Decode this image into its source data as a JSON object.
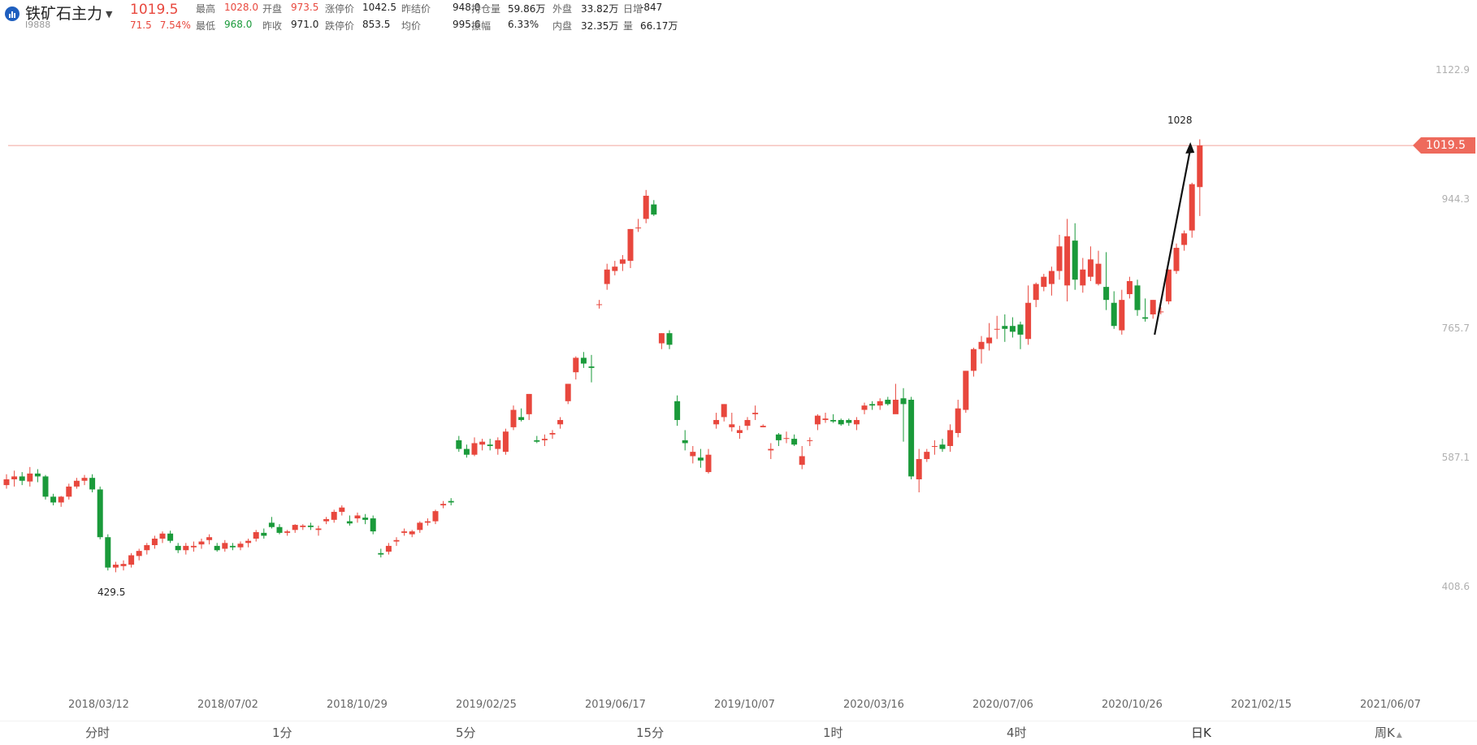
{
  "instrument": {
    "name": "铁矿石主力",
    "dropdown_glyph": "▼",
    "code": "I9888",
    "last_price": "1019.5",
    "change": "71.5",
    "change_pct": "7.54%"
  },
  "quote_row1": [
    {
      "label": "最高",
      "value": "1028.0",
      "color": "red"
    },
    {
      "label": "开盘",
      "value": "973.5",
      "color": "red"
    },
    {
      "label": "涨停价",
      "value": "1042.5",
      "color": "dark"
    },
    {
      "label": "昨结价",
      "value": "948.0",
      "color": "dark"
    },
    {
      "label": "持仓量",
      "value": "59.86万",
      "color": "dark"
    },
    {
      "label": "外盘",
      "value": "33.82万",
      "color": "dark"
    },
    {
      "label": "日增",
      "value": "-847",
      "color": "dark"
    }
  ],
  "quote_row2": [
    {
      "label": "最低",
      "value": "968.0",
      "color": "green"
    },
    {
      "label": "昨收",
      "value": "971.0",
      "color": "dark"
    },
    {
      "label": "跌停价",
      "value": "853.5",
      "color": "dark"
    },
    {
      "label": "均价",
      "value": "995.6",
      "color": "dark"
    },
    {
      "label": "振幅",
      "value": "6.33%",
      "color": "dark"
    },
    {
      "label": "内盘",
      "value": "32.35万",
      "color": "dark"
    },
    {
      "label": "量",
      "value": "66.17万",
      "color": "dark"
    }
  ],
  "colors": {
    "up": "#e8473d",
    "down": "#1a9a3a",
    "price_line": "#f2a59c",
    "arrow": "#111111",
    "tag_bg": "#ee6a5c"
  },
  "chart_data": {
    "type": "candlestick",
    "y_ticks": [
      "1122.9",
      "944.3",
      "765.7",
      "587.1",
      "408.6"
    ],
    "ylim": [
      230,
      1160
    ],
    "x_ticks": [
      "2018/03/12",
      "2018/07/02",
      "2018/10/29",
      "2019/02/25",
      "2019/06/17",
      "2019/10/07",
      "2020/03/16",
      "2020/07/06",
      "2020/10/26",
      "2021/02/15",
      "2021/06/07"
    ],
    "current_price": "1019.5",
    "high_label": "1028",
    "low_label": "429.5",
    "trend_arrow": {
      "from_index": 147,
      "to_index": 152
    },
    "candles": [
      [
        550,
        565,
        545,
        558
      ],
      [
        558,
        570,
        548,
        562
      ],
      [
        562,
        568,
        550,
        556
      ],
      [
        555,
        575,
        548,
        566
      ],
      [
        566,
        572,
        554,
        562
      ],
      [
        562,
        564,
        530,
        534
      ],
      [
        534,
        538,
        522,
        526
      ],
      [
        526,
        535,
        520,
        534
      ],
      [
        534,
        552,
        530,
        548
      ],
      [
        548,
        560,
        545,
        556
      ],
      [
        556,
        564,
        550,
        560
      ],
      [
        560,
        565,
        540,
        544
      ],
      [
        544,
        548,
        475,
        478
      ],
      [
        478,
        482,
        432,
        436
      ],
      [
        436,
        444,
        429.5,
        440
      ],
      [
        438,
        446,
        432,
        441
      ],
      [
        440,
        456,
        436,
        453
      ],
      [
        452,
        462,
        446,
        459
      ],
      [
        460,
        470,
        454,
        467
      ],
      [
        467,
        480,
        462,
        476
      ],
      [
        476,
        486,
        470,
        483
      ],
      [
        483,
        487,
        470,
        473
      ],
      [
        466,
        470,
        456,
        460
      ],
      [
        460,
        470,
        454,
        466
      ],
      [
        464,
        472,
        458,
        466
      ],
      [
        468,
        476,
        462,
        472
      ],
      [
        474,
        482,
        468,
        478
      ],
      [
        466,
        470,
        458,
        460
      ],
      [
        462,
        474,
        458,
        470
      ],
      [
        466,
        470,
        460,
        464
      ],
      [
        464,
        472,
        460,
        469
      ],
      [
        470,
        476,
        464,
        473
      ],
      [
        476,
        488,
        472,
        485
      ],
      [
        484,
        490,
        476,
        480
      ],
      [
        498,
        506,
        490,
        492
      ],
      [
        492,
        496,
        482,
        484
      ],
      [
        484,
        488,
        480,
        486
      ],
      [
        488,
        496,
        484,
        495
      ],
      [
        492,
        496,
        488,
        494
      ],
      [
        494,
        498,
        488,
        492
      ],
      [
        488,
        494,
        480,
        490
      ],
      [
        500,
        506,
        496,
        503
      ],
      [
        502,
        516,
        498,
        513
      ],
      [
        513,
        522,
        508,
        519
      ],
      [
        500,
        508,
        494,
        497
      ],
      [
        504,
        512,
        498,
        508
      ],
      [
        505,
        510,
        496,
        502
      ],
      [
        504,
        508,
        482,
        486
      ],
      [
        456,
        462,
        450,
        454
      ],
      [
        458,
        470,
        454,
        466
      ],
      [
        472,
        478,
        466,
        474
      ],
      [
        484,
        490,
        480,
        486
      ],
      [
        482,
        488,
        478,
        486
      ],
      [
        488,
        500,
        484,
        498
      ],
      [
        498,
        504,
        494,
        500
      ],
      [
        500,
        516,
        496,
        514
      ],
      [
        522,
        528,
        518,
        524
      ],
      [
        528,
        532,
        522,
        526
      ],
      [
        612,
        618,
        596,
        600
      ],
      [
        600,
        606,
        588,
        592
      ],
      [
        592,
        616,
        590,
        608
      ],
      [
        606,
        614,
        598,
        610
      ],
      [
        606,
        614,
        598,
        604
      ],
      [
        600,
        616,
        592,
        612
      ],
      [
        596,
        628,
        592,
        624
      ],
      [
        630,
        660,
        626,
        654
      ],
      [
        644,
        656,
        638,
        640
      ],
      [
        648,
        676,
        640,
        676
      ],
      [
        612,
        618,
        608,
        610
      ],
      [
        612,
        620,
        604,
        614
      ],
      [
        620,
        626,
        614,
        622
      ],
      [
        634,
        644,
        628,
        640
      ],
      [
        666,
        690,
        662,
        690
      ],
      [
        706,
        728,
        696,
        726
      ],
      [
        726,
        734,
        712,
        718
      ],
      [
        714,
        730,
        692,
        712
      ],
      [
        800,
        806,
        794,
        800
      ],
      [
        828,
        856,
        820,
        848
      ],
      [
        846,
        860,
        840,
        852
      ],
      [
        856,
        868,
        846,
        862
      ],
      [
        860,
        904,
        850,
        904
      ],
      [
        906,
        918,
        900,
        906
      ],
      [
        918,
        958,
        912,
        950
      ],
      [
        938,
        944,
        922,
        924
      ],
      [
        746,
        760,
        738,
        760
      ],
      [
        760,
        764,
        738,
        744
      ],
      [
        666,
        674,
        632,
        640
      ],
      [
        612,
        626,
        598,
        608
      ],
      [
        590,
        604,
        580,
        596
      ],
      [
        588,
        600,
        574,
        584
      ],
      [
        568,
        600,
        566,
        592
      ],
      [
        634,
        650,
        628,
        640
      ],
      [
        644,
        662,
        638,
        662
      ],
      [
        630,
        650,
        624,
        634
      ],
      [
        622,
        632,
        614,
        626
      ],
      [
        632,
        644,
        626,
        640
      ],
      [
        648,
        660,
        640,
        650
      ],
      [
        630,
        634,
        630,
        632
      ],
      [
        598,
        608,
        586,
        600
      ],
      [
        620,
        622,
        604,
        612
      ],
      [
        615,
        624,
        608,
        615
      ],
      [
        614,
        620,
        604,
        606
      ],
      [
        578,
        604,
        572,
        590
      ],
      [
        612,
        616,
        604,
        612
      ],
      [
        634,
        648,
        626,
        646
      ],
      [
        640,
        650,
        636,
        642
      ],
      [
        640,
        648,
        636,
        638
      ],
      [
        640,
        642,
        632,
        634
      ],
      [
        640,
        642,
        632,
        636
      ],
      [
        634,
        644,
        626,
        640
      ],
      [
        654,
        664,
        648,
        660
      ],
      [
        662,
        666,
        654,
        660
      ],
      [
        660,
        670,
        654,
        666
      ],
      [
        668,
        672,
        660,
        662
      ],
      [
        648,
        690,
        652,
        668
      ],
      [
        670,
        684,
        610,
        662
      ],
      [
        668,
        672,
        558,
        562
      ],
      [
        558,
        600,
        540,
        586
      ],
      [
        586,
        600,
        582,
        596
      ],
      [
        604,
        612,
        592,
        604
      ],
      [
        606,
        614,
        596,
        600
      ],
      [
        604,
        634,
        596,
        626
      ],
      [
        622,
        668,
        616,
        656
      ],
      [
        654,
        708,
        650,
        708
      ],
      [
        708,
        740,
        700,
        738
      ],
      [
        738,
        756,
        718,
        748
      ],
      [
        746,
        774,
        736,
        754
      ],
      [
        766,
        784,
        752,
        766
      ],
      [
        770,
        786,
        748,
        766
      ],
      [
        770,
        782,
        754,
        762
      ],
      [
        772,
        776,
        738,
        758
      ],
      [
        752,
        826,
        744,
        802
      ],
      [
        806,
        830,
        796,
        828
      ],
      [
        824,
        842,
        818,
        838
      ],
      [
        828,
        852,
        812,
        846
      ],
      [
        846,
        896,
        834,
        880
      ],
      [
        826,
        918,
        804,
        894
      ],
      [
        888,
        912,
        820,
        834
      ],
      [
        826,
        864,
        816,
        848
      ],
      [
        838,
        880,
        832,
        862
      ],
      [
        828,
        874,
        826,
        856
      ],
      [
        824,
        872,
        792,
        806
      ],
      [
        802,
        818,
        766,
        770
      ],
      [
        764,
        820,
        758,
        806
      ],
      [
        814,
        838,
        808,
        832
      ],
      [
        826,
        834,
        784,
        792
      ],
      [
        782,
        808,
        776,
        780
      ],
      [
        786,
        806,
        780,
        806
      ],
      [
        790,
        796,
        786,
        790
      ],
      [
        804,
        848,
        800,
        848
      ],
      [
        846,
        884,
        842,
        878
      ],
      [
        882,
        902,
        874,
        898
      ],
      [
        902,
        968,
        892,
        966
      ],
      [
        962,
        1028,
        922,
        1019.5
      ]
    ]
  },
  "bottom_tabs": [
    {
      "label": "分时",
      "active": false
    },
    {
      "label": "1分",
      "active": false
    },
    {
      "label": "5分",
      "active": false
    },
    {
      "label": "15分",
      "active": false
    },
    {
      "label": "1时",
      "active": false
    },
    {
      "label": "4时",
      "active": false
    },
    {
      "label": "日K",
      "active": true
    },
    {
      "label": "周K",
      "active": false,
      "suffix": "▲"
    }
  ]
}
